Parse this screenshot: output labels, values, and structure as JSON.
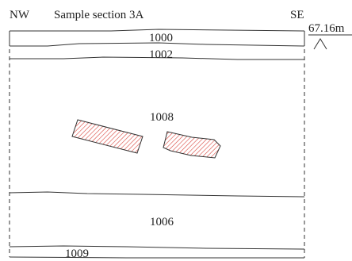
{
  "header": {
    "left_orientation": "NW",
    "title": "Sample section 3A",
    "right_orientation": "SE"
  },
  "datum": {
    "elevation": "67.16m"
  },
  "contexts": [
    {
      "id": "1000"
    },
    {
      "id": "1002"
    },
    {
      "id": "1008"
    },
    {
      "id": "1006"
    },
    {
      "id": "1009"
    }
  ],
  "colors": {
    "hatch": "#d9443c",
    "line": "#333333"
  }
}
